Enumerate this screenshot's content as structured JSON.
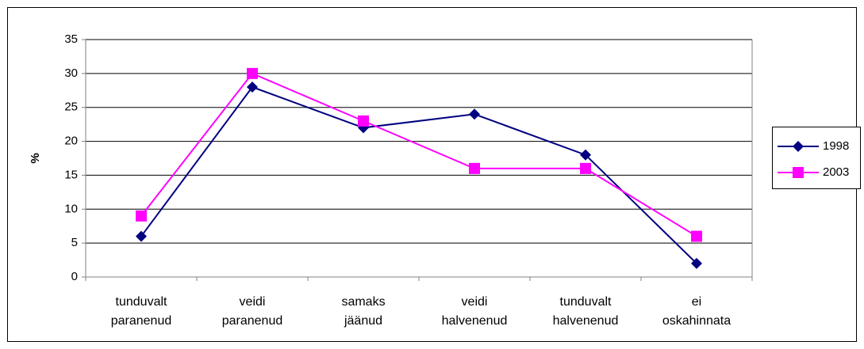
{
  "chart_data": {
    "type": "line",
    "y_label": "%",
    "categories": [
      "tunduvalt paranenud",
      "veidi paranenud",
      "samaks jäänud",
      "veidi halvenenud",
      "tunduvalt halvenenud",
      "ei oskahinnata"
    ],
    "series": [
      {
        "name": "1998",
        "color": "#000080",
        "marker": "diamond",
        "values": [
          6,
          28,
          22,
          24,
          18,
          2
        ]
      },
      {
        "name": "2003",
        "color": "#ff00ff",
        "marker": "square",
        "values": [
          9,
          30,
          23,
          16,
          16,
          6
        ]
      }
    ],
    "ylim": [
      0,
      35
    ],
    "yticks": [
      0,
      5,
      10,
      15,
      20,
      25,
      30,
      35
    ],
    "grid": true,
    "legend": "right"
  }
}
